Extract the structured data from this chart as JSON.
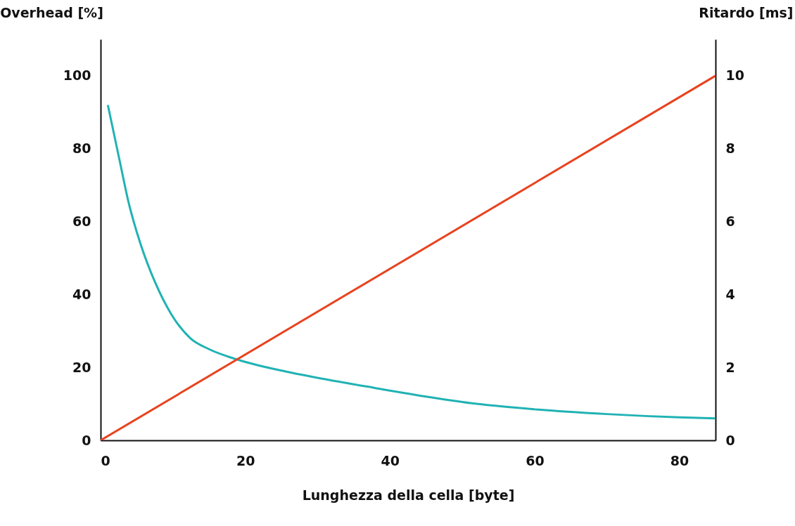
{
  "chart_data": {
    "type": "line",
    "xlabel": "Lunghezza della cella [byte]",
    "ylabel": "Overhead [%]",
    "y2label": "Ritardo [ms]",
    "xlim": [
      0,
      85
    ],
    "xticks": [
      0,
      20,
      40,
      60,
      80
    ],
    "ylim": [
      0,
      110
    ],
    "yticks": [
      0,
      20,
      40,
      60,
      80,
      100
    ],
    "y2lim": [
      0,
      11
    ],
    "y2ticks": [
      0,
      2,
      4,
      6,
      8,
      10
    ],
    "grid": false,
    "series": [
      {
        "color": "#20b2b4",
        "x": [
          1,
          2.6,
          3.9,
          5.5,
          7.5,
          9.8,
          12.4,
          15,
          18.5,
          24.8,
          31.2,
          37.8,
          45,
          52,
          60,
          70,
          80,
          85
        ],
        "values": [
          92,
          77,
          65,
          54,
          43.5,
          34.5,
          28,
          25,
          22.4,
          19.2,
          16.7,
          14.4,
          12,
          10,
          8.5,
          7.2,
          6.3,
          6
        ]
      },
      {
        "color": "#e8431f",
        "axis": "y2",
        "x": [
          0,
          85
        ],
        "values": [
          0,
          10
        ]
      }
    ]
  }
}
